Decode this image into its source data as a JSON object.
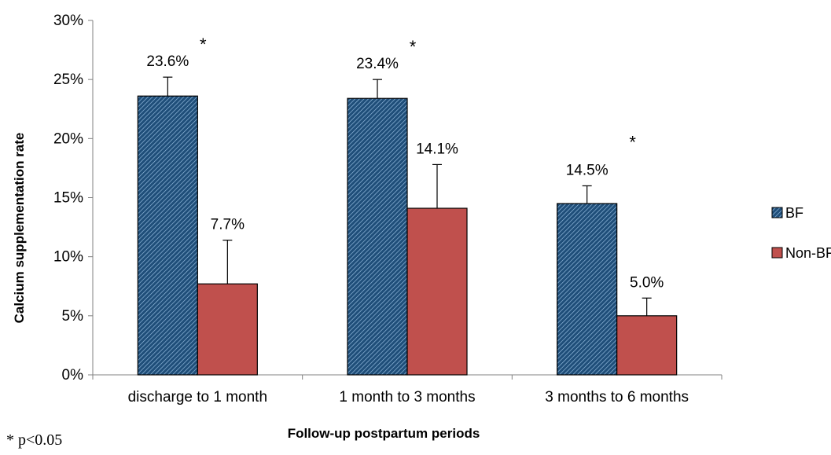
{
  "chart_data": {
    "type": "bar",
    "categories": [
      "discharge to 1 month",
      "1 month to 3 months",
      "3 months to 6 months"
    ],
    "series": [
      {
        "name": "BF",
        "values": [
          23.6,
          23.4,
          14.5
        ],
        "error_upper": [
          1.6,
          1.6,
          1.5
        ],
        "data_labels": [
          "23.6%",
          "23.4%",
          "14.5%"
        ],
        "color": "#2E6DA4",
        "pattern": "diagonal-hatch"
      },
      {
        "name": "Non-BF",
        "values": [
          7.7,
          14.1,
          5.0
        ],
        "error_upper": [
          3.7,
          3.7,
          1.5
        ],
        "data_labels": [
          "7.7%",
          "14.1%",
          "5.0%"
        ],
        "color": "#C0504D",
        "pattern": "solid"
      }
    ],
    "significance_marks": [
      "*",
      "*",
      "*"
    ],
    "xlabel": "Follow-up postpartum periods",
    "ylabel": "Calcium supplementation rate",
    "ylim": [
      0,
      30
    ],
    "yticks": [
      0,
      5,
      10,
      15,
      20,
      25,
      30
    ],
    "ytick_labels": [
      "0%",
      "5%",
      "10%",
      "15%",
      "20%",
      "25%",
      "30%"
    ],
    "grid": false,
    "legend_position": "right",
    "footnote": "* p<0.05"
  }
}
